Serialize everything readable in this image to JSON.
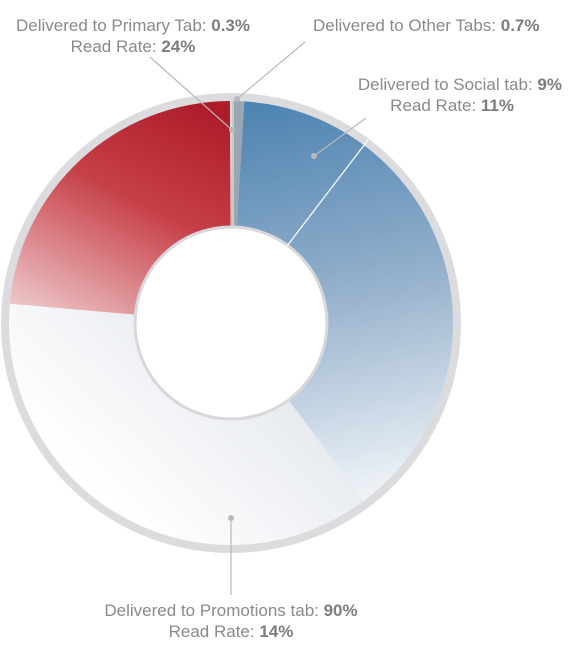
{
  "chart_data": {
    "type": "pie",
    "style": "donut",
    "slices": [
      {
        "name": "Delivered to Other Tabs",
        "value": 0.7,
        "read_rate": null,
        "color": "#9aa7b3"
      },
      {
        "name": "Delivered to Social tab",
        "value": 9,
        "read_rate": 11,
        "color": "#4f86b3"
      },
      {
        "name": "Delivered to Promotions tab",
        "value": 90,
        "read_rate": 14,
        "color": "#f4f4f6"
      },
      {
        "name": "Delivered to Primary Tab",
        "value": 0.3,
        "read_rate": 24,
        "color": "#b31f2e"
      }
    ],
    "annotations": {
      "primary": {
        "line1": "Delivered to Primary Tab: ",
        "value1": "0.3%",
        "line2": "Read Rate: ",
        "value2": "24%"
      },
      "other": {
        "line1": "Delivered to Other Tabs: ",
        "value1": "0.7%"
      },
      "social": {
        "line1": "Delivered to Social tab: ",
        "value1": "9%",
        "line2": "Read Rate: ",
        "value2": "11%"
      },
      "promotions": {
        "line1": "Delivered to Promotions tab: ",
        "value1": "90%",
        "line2": "Read Rate: ",
        "value2": "14%"
      }
    }
  }
}
